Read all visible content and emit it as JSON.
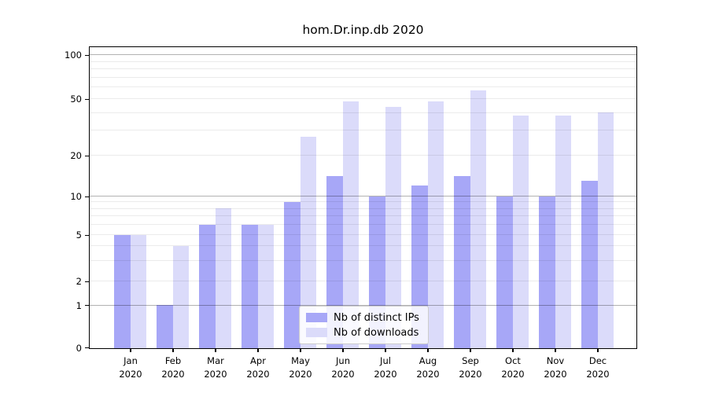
{
  "title": "hom.Dr.inp.db 2020",
  "chart_data": {
    "type": "bar",
    "title": "hom.Dr.inp.db 2020",
    "categories": [
      "Jan 2020",
      "Feb 2020",
      "Mar 2020",
      "Apr 2020",
      "May 2020",
      "Jun 2020",
      "Jul 2020",
      "Aug 2020",
      "Sep 2020",
      "Oct 2020",
      "Nov 2020",
      "Dec 2020"
    ],
    "series": [
      {
        "name": "Nb of distinct IPs",
        "color": "#a7a7f7",
        "values": [
          5,
          1,
          6,
          6,
          9,
          14,
          10,
          12,
          14,
          10,
          10,
          13
        ]
      },
      {
        "name": "Nb of downloads",
        "color": "#dbdbfa",
        "values": [
          5,
          4,
          8,
          6,
          27,
          48,
          44,
          48,
          57,
          38,
          38,
          40
        ]
      }
    ],
    "yscale": "symlog",
    "yticks": [
      0,
      1,
      2,
      5,
      10,
      20,
      50,
      100
    ],
    "ylim": [
      0,
      115
    ],
    "xlabel": "",
    "ylabel": "",
    "grid": true,
    "legend_position": "lower center"
  }
}
